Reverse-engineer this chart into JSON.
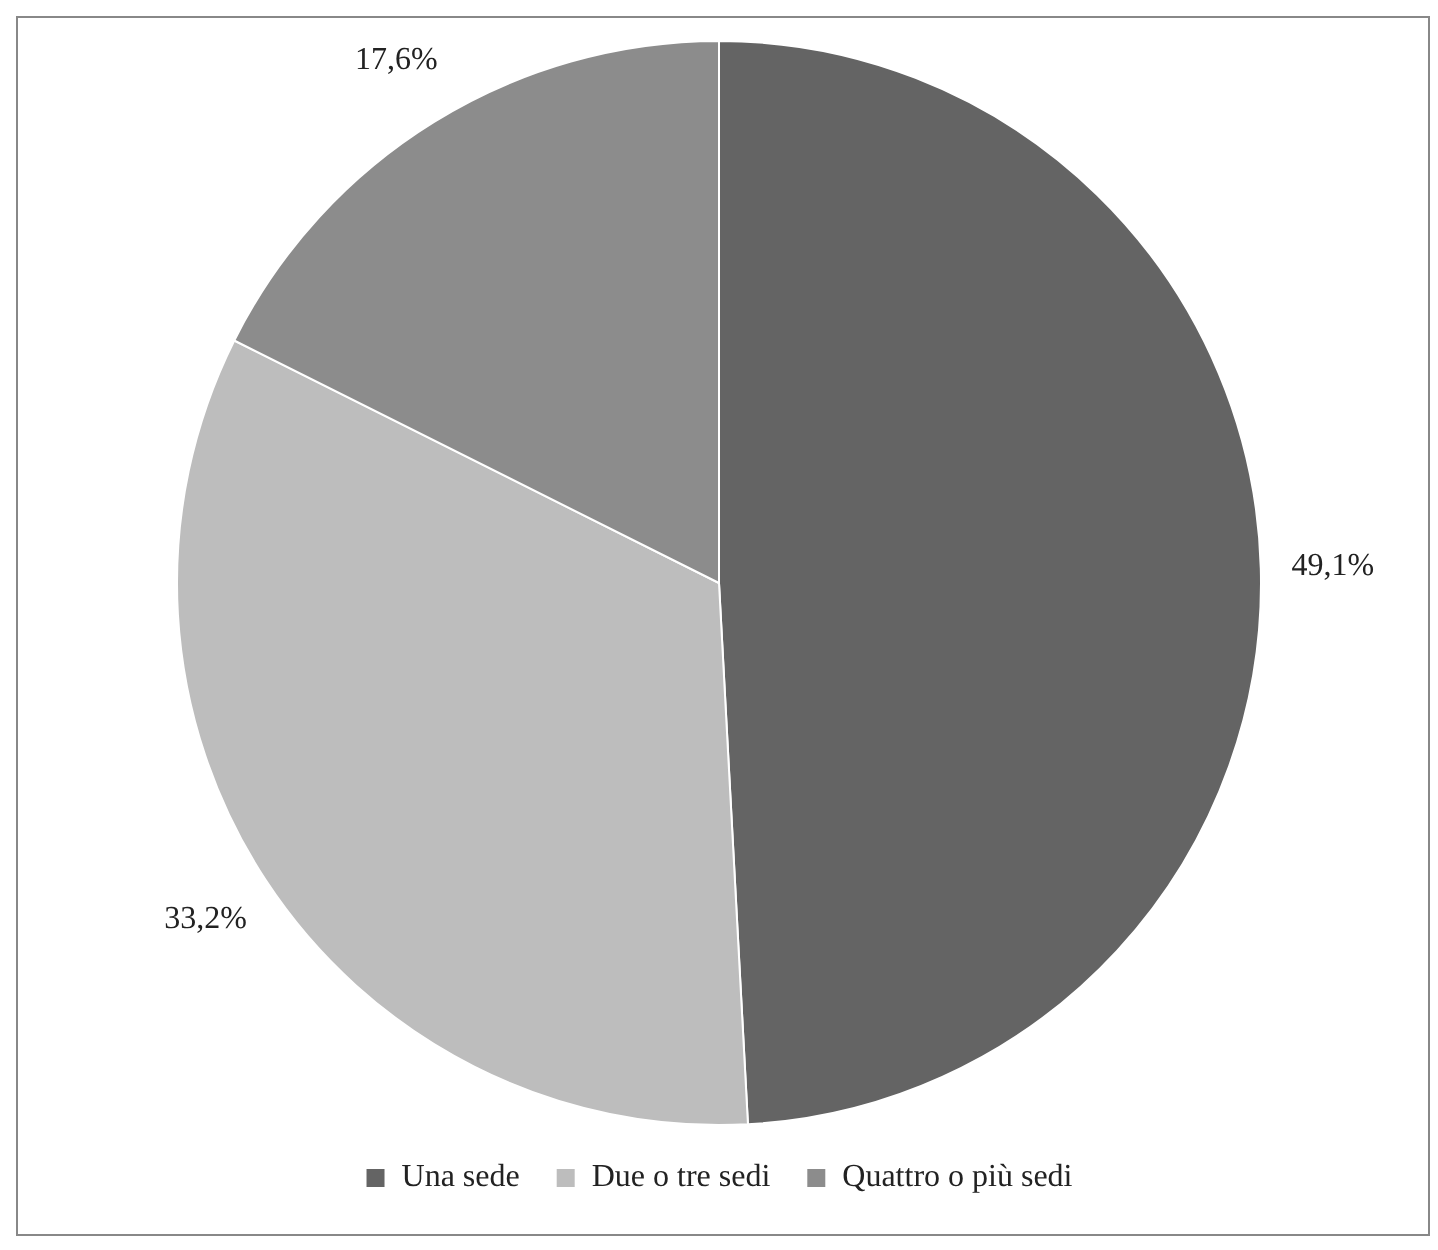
{
  "chart_data": {
    "type": "pie",
    "categories": [
      "Una sede",
      "Due o tre sedi",
      "Quattro o più sedi"
    ],
    "values": [
      49.1,
      33.2,
      17.6
    ],
    "value_labels": [
      "49,1%",
      "33,2%",
      "17,6%"
    ],
    "colors": [
      "#646464",
      "#bdbdbd",
      "#8c8c8c"
    ],
    "legend": "bottom"
  }
}
